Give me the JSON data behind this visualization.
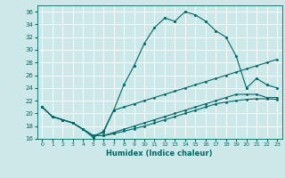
{
  "title": "",
  "xlabel": "Humidex (Indice chaleur)",
  "xlim": [
    -0.5,
    23.5
  ],
  "ylim": [
    16,
    37
  ],
  "xticks": [
    0,
    1,
    2,
    3,
    4,
    5,
    6,
    7,
    8,
    9,
    10,
    11,
    12,
    13,
    14,
    15,
    16,
    17,
    18,
    19,
    20,
    21,
    22,
    23
  ],
  "yticks": [
    16,
    18,
    20,
    22,
    24,
    26,
    28,
    30,
    32,
    34,
    36
  ],
  "bg_color": "#cde8e8",
  "grid_color": "#b0d8d8",
  "line_color": "#006666",
  "line1_x": [
    0,
    1,
    2,
    3,
    4,
    5,
    6,
    7,
    8,
    9,
    10,
    11,
    12,
    13,
    14,
    15,
    16,
    17,
    18,
    19,
    20,
    21,
    22,
    23
  ],
  "line1_y": [
    21.0,
    19.5,
    19.0,
    18.5,
    17.5,
    16.2,
    17.2,
    20.5,
    24.5,
    27.5,
    31.0,
    33.5,
    35.0,
    34.5,
    36.0,
    35.5,
    34.5,
    33.0,
    32.0,
    29.0,
    24.0,
    25.5,
    24.5,
    24.0
  ],
  "line2_x": [
    0,
    1,
    2,
    3,
    4,
    5,
    6,
    7,
    8,
    9,
    10,
    11,
    12,
    13,
    14,
    15,
    16,
    17,
    18,
    19,
    20,
    21,
    22,
    23
  ],
  "line2_y": [
    21.0,
    19.5,
    19.0,
    18.5,
    17.5,
    16.5,
    17.0,
    20.5,
    21.0,
    21.5,
    22.0,
    22.5,
    23.0,
    23.5,
    24.0,
    24.5,
    25.0,
    25.5,
    26.0,
    26.5,
    27.0,
    27.5,
    28.0,
    28.5
  ],
  "line3_x": [
    0,
    1,
    2,
    3,
    4,
    5,
    6,
    7,
    8,
    9,
    10,
    11,
    12,
    13,
    14,
    15,
    16,
    17,
    18,
    19,
    20,
    21,
    22,
    23
  ],
  "line3_y": [
    21.0,
    19.5,
    19.0,
    18.5,
    17.5,
    16.5,
    16.5,
    17.0,
    17.5,
    18.0,
    18.5,
    19.0,
    19.5,
    20.0,
    20.5,
    21.0,
    21.5,
    22.0,
    22.5,
    23.0,
    23.0,
    23.0,
    22.5,
    22.5
  ],
  "line4_x": [
    0,
    1,
    2,
    3,
    4,
    5,
    6,
    7,
    8,
    9,
    10,
    11,
    12,
    13,
    14,
    15,
    16,
    17,
    18,
    19,
    20,
    21,
    22,
    23
  ],
  "line4_y": [
    21.0,
    19.5,
    19.0,
    18.5,
    17.5,
    16.5,
    16.5,
    16.8,
    17.2,
    17.6,
    18.0,
    18.5,
    19.0,
    19.5,
    20.0,
    20.5,
    21.0,
    21.5,
    21.8,
    22.0,
    22.2,
    22.3,
    22.3,
    22.2
  ]
}
